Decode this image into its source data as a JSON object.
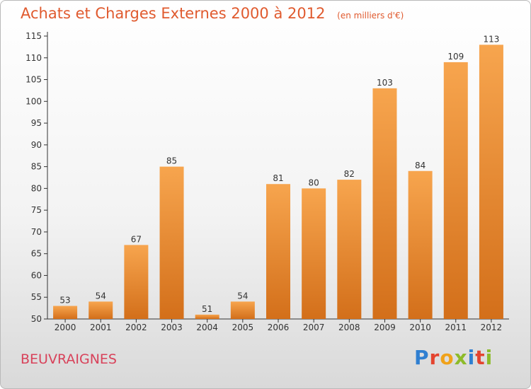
{
  "header": {
    "title": "Achats et Charges Externes 2000 à 2012",
    "subtitle": "(en milliers d'€)"
  },
  "footer": {
    "commune": "BEUVRAIGNES",
    "logo": "Proxiti"
  },
  "colors": {
    "title": "#e05a2e",
    "bar_top": "#f7a54e",
    "bar_bottom": "#d36f1a",
    "commune": "#d8425a"
  },
  "chart_data": {
    "type": "bar",
    "categories": [
      "2000",
      "2001",
      "2002",
      "2003",
      "2004",
      "2005",
      "2006",
      "2007",
      "2008",
      "2009",
      "2010",
      "2011",
      "2012"
    ],
    "values": [
      53,
      54,
      67,
      85,
      51,
      54,
      81,
      80,
      82,
      103,
      84,
      109,
      113
    ],
    "title": "Achats et Charges Externes 2000 à 2012",
    "subtitle": "(en milliers d'€)",
    "xlabel": "",
    "ylabel": "",
    "ylim": [
      50,
      115
    ],
    "yticks": [
      50,
      55,
      60,
      65,
      70,
      75,
      80,
      85,
      90,
      95,
      100,
      105,
      110,
      115
    ],
    "grid": false,
    "data_labels": true
  }
}
